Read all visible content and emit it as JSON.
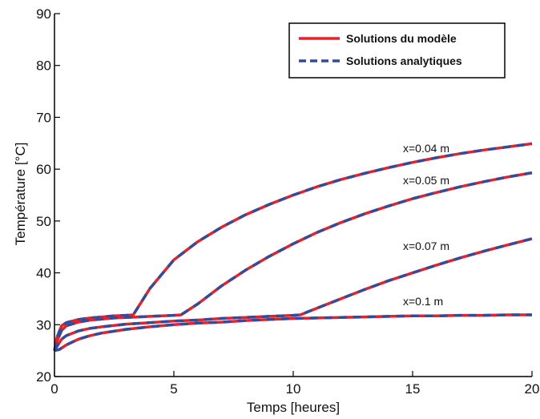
{
  "chart_data": {
    "type": "line",
    "title": "",
    "xlabel": "Temps [heures]",
    "ylabel": "Température [°C]",
    "xlim": [
      0,
      20
    ],
    "ylim": [
      20,
      90
    ],
    "xticks": [
      0,
      5,
      10,
      15,
      20
    ],
    "yticks": [
      20,
      30,
      40,
      50,
      60,
      70,
      80,
      90
    ],
    "grid": false,
    "legend": {
      "placement": "top-right",
      "entries": [
        {
          "label": "Solutions du modèle",
          "color": "#e8202a",
          "style": "solid"
        },
        {
          "label": "Solutions analytiques",
          "color": "#2e4d9e",
          "style": "dashed"
        }
      ]
    },
    "annotations": [
      "x=0.04 m",
      "x=0.05 m",
      "x=0.07 m",
      "x=0.1 m"
    ],
    "series": [
      {
        "x": [
          0,
          0.1,
          0.3,
          0.5,
          1,
          1.5,
          2,
          2.5,
          3,
          3.3,
          4,
          5,
          6,
          7,
          8,
          9,
          10,
          11,
          12,
          13,
          14,
          15,
          16,
          17,
          18,
          19,
          20
        ],
        "y": [
          25,
          27.5,
          29.8,
          30.4,
          31.0,
          31.3,
          31.5,
          31.7,
          31.8,
          31.9,
          37,
          42.5,
          46,
          48.8,
          51.2,
          53.2,
          55.0,
          56.6,
          58.0,
          59.2,
          60.3,
          61.3,
          62.2,
          63.0,
          63.7,
          64.3,
          64.9
        ]
      },
      {
        "x": [
          0,
          0.1,
          0.3,
          0.5,
          1,
          1.5,
          2,
          2.5,
          3,
          3.5,
          4,
          4.5,
          5,
          5.3,
          6,
          7,
          8,
          9,
          10,
          11,
          12,
          13,
          14,
          15,
          16,
          17,
          18,
          19,
          20
        ],
        "y": [
          25,
          26.8,
          28.9,
          29.8,
          30.5,
          30.9,
          31.1,
          31.3,
          31.4,
          31.5,
          31.6,
          31.7,
          31.8,
          31.9,
          34,
          37.5,
          40.5,
          43.2,
          45.6,
          47.8,
          49.7,
          51.4,
          52.9,
          54.3,
          55.5,
          56.6,
          57.6,
          58.5,
          59.3
        ]
      },
      {
        "x": [
          0,
          0.1,
          0.3,
          0.5,
          1,
          1.5,
          2,
          3,
          4,
          5,
          6,
          7,
          8,
          9,
          10,
          10.3,
          11,
          12,
          13,
          14,
          15,
          16,
          17,
          18,
          19,
          20
        ],
        "y": [
          25,
          25.8,
          27.2,
          27.9,
          28.8,
          29.3,
          29.6,
          30.1,
          30.4,
          30.7,
          30.9,
          31.2,
          31.4,
          31.6,
          31.8,
          31.9,
          33.2,
          35.0,
          36.8,
          38.5,
          40.0,
          41.5,
          42.9,
          44.2,
          45.4,
          46.6
        ]
      },
      {
        "x": [
          0,
          0.2,
          0.5,
          1,
          1.5,
          2,
          3,
          4,
          5,
          6,
          7,
          8,
          9,
          10,
          11,
          12,
          13,
          14,
          15,
          16,
          17,
          18,
          19,
          20
        ],
        "y": [
          25,
          25.2,
          26.1,
          27.2,
          27.9,
          28.4,
          29.1,
          29.6,
          30.0,
          30.3,
          30.5,
          30.8,
          31.0,
          31.2,
          31.3,
          31.4,
          31.5,
          31.6,
          31.7,
          31.7,
          31.8,
          31.8,
          31.9,
          31.9
        ]
      }
    ]
  }
}
